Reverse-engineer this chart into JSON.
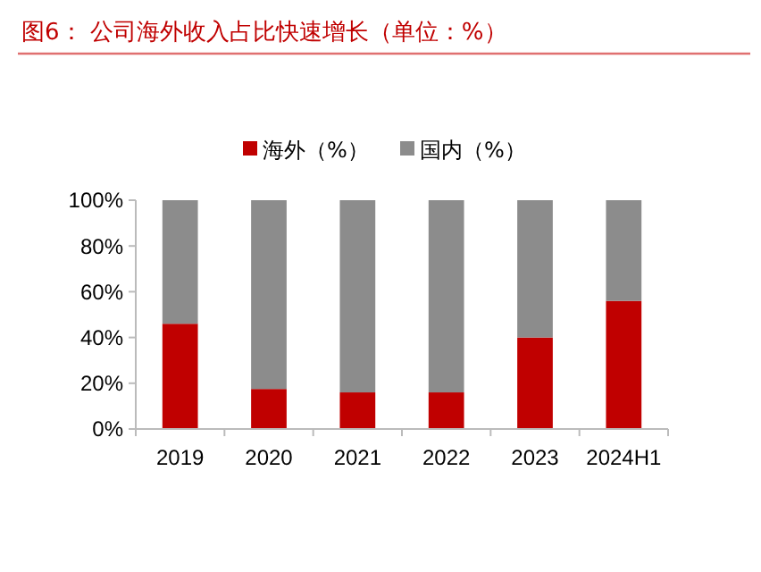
{
  "chart_data": {
    "type": "bar",
    "title": "图6：  公司海外收入占比快速增长（单位：%）",
    "categories": [
      "2019",
      "2020",
      "2021",
      "2022",
      "2023",
      "2024H1"
    ],
    "stacked": true,
    "legend": "top",
    "grid": false,
    "series": [
      {
        "name": "海外（%）",
        "color": "#c00000",
        "values": [
          46,
          17.5,
          16,
          16,
          40,
          56
        ]
      },
      {
        "name": "国内（%）",
        "color": "#8c8c8c",
        "values": [
          54,
          82.5,
          84,
          84,
          60,
          44
        ]
      }
    ],
    "ylim": [
      0,
      100
    ],
    "yticks": [
      {
        "value": 0,
        "label": "0%"
      },
      {
        "value": 20,
        "label": "20%"
      },
      {
        "value": 40,
        "label": "40%"
      },
      {
        "value": 60,
        "label": "60%"
      },
      {
        "value": 80,
        "label": "80%"
      },
      {
        "value": 100,
        "label": "100%"
      }
    ]
  }
}
